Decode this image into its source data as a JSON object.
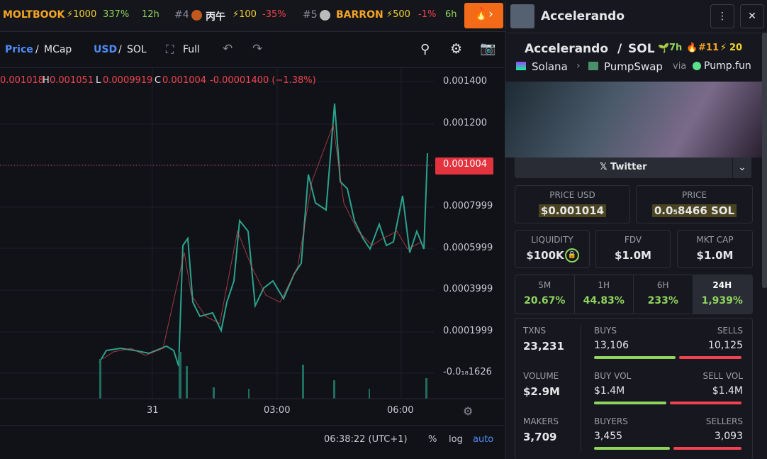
{
  "ticker": [
    {
      "name": "MOLTBOOK",
      "boost": "⚡1000",
      "change": "337%",
      "age": "12h"
    },
    {
      "rank": "#4",
      "name": "丙午",
      "boost": "⚡100",
      "change": "-35%"
    },
    {
      "rank": "#5",
      "name": "BARRON",
      "boost": "⚡500",
      "change": "-1%",
      "age": "6h"
    }
  ],
  "toolbar": {
    "price": "Price",
    "sep": "/",
    "mcap": "MCap",
    "usd": "USD",
    "sol": "SOL",
    "full": "Full"
  },
  "ohlc": {
    "o": "0.001018",
    "h_label": "H",
    "h": "0.001051",
    "l_label": "L",
    "l": "0.0009919",
    "c_label": "C",
    "c": "0.001004",
    "change": "-0.00001400 (−1.38%)"
  },
  "y_axis": [
    "0.001400",
    "0.001200",
    "0.0007999",
    "0.0005999",
    "0.0003999",
    "0.0001999",
    "-0.0₁₈1626"
  ],
  "current_price": "0.001004",
  "x_axis": [
    "31",
    "03:00",
    "06:00"
  ],
  "footer": {
    "time": "06:38:22 (UTC+1)",
    "percent": "%",
    "log": "log",
    "auto": "auto"
  },
  "panel": {
    "header": "Accelerando",
    "pair": {
      "base": "Accelerando",
      "sep": "/",
      "quote": "SOL",
      "age": "7h",
      "rank": "#11",
      "boost": "20"
    },
    "chain": "Solana",
    "dex": "PumpSwap",
    "via": "via",
    "launchpad": "Pump.fun",
    "twitter": "Twitter",
    "price_usd": {
      "label": "PRICE USD",
      "value": "$0.001014"
    },
    "price": {
      "label": "PRICE",
      "value": "0.0₅8466 SOL"
    },
    "liquidity": {
      "label": "LIQUIDITY",
      "value": "$100K"
    },
    "fdv": {
      "label": "FDV",
      "value": "$1.0M"
    },
    "mkt_cap": {
      "label": "MKT CAP",
      "value": "$1.0M"
    },
    "tabs": [
      {
        "label": "5M",
        "value": "20.67%"
      },
      {
        "label": "1H",
        "value": "44.83%"
      },
      {
        "label": "6H",
        "value": "233%"
      },
      {
        "label": "24H",
        "value": "1,939%"
      }
    ],
    "stats": [
      {
        "label": "TXNS",
        "value": "23,231",
        "left_label": "BUYS",
        "left": 13106,
        "left_text": "13,106",
        "right_label": "SELLS",
        "right": 10125,
        "right_text": "10,125"
      },
      {
        "label": "VOLUME",
        "value": "$2.9M",
        "left_label": "BUY VOL",
        "left": 1.4,
        "left_text": "$1.4M",
        "right_label": "SELL VOL",
        "right": 1.4,
        "right_text": "$1.4M"
      },
      {
        "label": "MAKERS",
        "value": "3,709",
        "left_label": "BUYERS",
        "left": 3455,
        "left_text": "3,455",
        "right_label": "SELLERS",
        "right": 3093,
        "right_text": "3,093"
      }
    ]
  }
}
